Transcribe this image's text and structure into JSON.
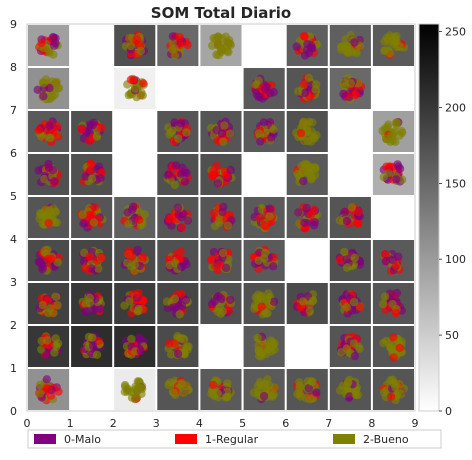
{
  "chart_data": {
    "type": "heatmap",
    "title": "SOM Total Diario",
    "grid_size": [
      9,
      9
    ],
    "xlim": [
      0,
      9
    ],
    "ylim": [
      0,
      9
    ],
    "x_ticks": [
      "0",
      "1",
      "2",
      "3",
      "4",
      "5",
      "6",
      "7",
      "8",
      "9"
    ],
    "y_ticks": [
      "0",
      "1",
      "2",
      "3",
      "4",
      "5",
      "6",
      "7",
      "8",
      "9"
    ],
    "colorbar": {
      "min": 0,
      "max": 255,
      "ticks": [
        "0",
        "50",
        "100",
        "150",
        "200",
        "250"
      ]
    },
    "grid_on": false,
    "legend_placement": "bottom",
    "legend": [
      {
        "name": "0-Malo",
        "color": "#800080"
      },
      {
        "name": "1-Regular",
        "color": "#ff0000"
      },
      {
        "name": "2-Bueno",
        "color": "#808000"
      }
    ],
    "cell_intensity_note": "row index 0 = top row (y 8-9), column index 0 = x 0-1; null = empty cell",
    "intensity": [
      [
        95,
        null,
        175,
        150,
        90,
        null,
        160,
        160,
        165
      ],
      [
        110,
        null,
        15,
        null,
        null,
        165,
        170,
        150,
        null
      ],
      [
        165,
        175,
        null,
        170,
        170,
        165,
        175,
        null,
        95
      ],
      [
        175,
        175,
        null,
        175,
        175,
        null,
        165,
        null,
        80
      ],
      [
        170,
        170,
        160,
        170,
        170,
        165,
        165,
        170,
        null
      ],
      [
        180,
        185,
        180,
        175,
        170,
        165,
        null,
        175,
        165
      ],
      [
        190,
        200,
        195,
        185,
        175,
        175,
        180,
        175,
        170
      ],
      [
        200,
        210,
        210,
        180,
        null,
        165,
        null,
        170,
        170
      ],
      [
        110,
        null,
        20,
        170,
        165,
        165,
        170,
        170,
        170
      ]
    ],
    "cell_mix": [
      [
        "mix",
        null,
        "mix",
        "mix",
        "bueno",
        null,
        "mix",
        "bueno",
        "bueno"
      ],
      [
        "bueno",
        null,
        "bueno",
        null,
        null,
        "mix",
        "mix",
        "mix",
        null
      ],
      [
        "mix",
        "mix",
        null,
        "mix",
        "mix",
        "mix",
        "bueno",
        null,
        "bueno"
      ],
      [
        "mix",
        "mix",
        null,
        "mix",
        "mix",
        null,
        "bueno",
        null,
        "mix"
      ],
      [
        "bueno",
        "mix",
        "mix",
        "mix",
        "mix",
        "mix",
        "mix",
        "mix",
        null
      ],
      [
        "mix",
        "mix",
        "mix",
        "mix",
        "mix",
        "mix",
        null,
        "mix",
        "mix"
      ],
      [
        "mix",
        "mix",
        "mix",
        "mix",
        "mix",
        "bueno",
        "mix",
        "mix",
        "mix"
      ],
      [
        "mix",
        "mix",
        "mix",
        "bueno",
        null,
        "bueno",
        null,
        "mix",
        "bueno"
      ],
      [
        "mix",
        null,
        "bueno",
        "bueno",
        "bueno",
        "bueno",
        "bueno",
        "bueno",
        "bueno"
      ]
    ]
  }
}
